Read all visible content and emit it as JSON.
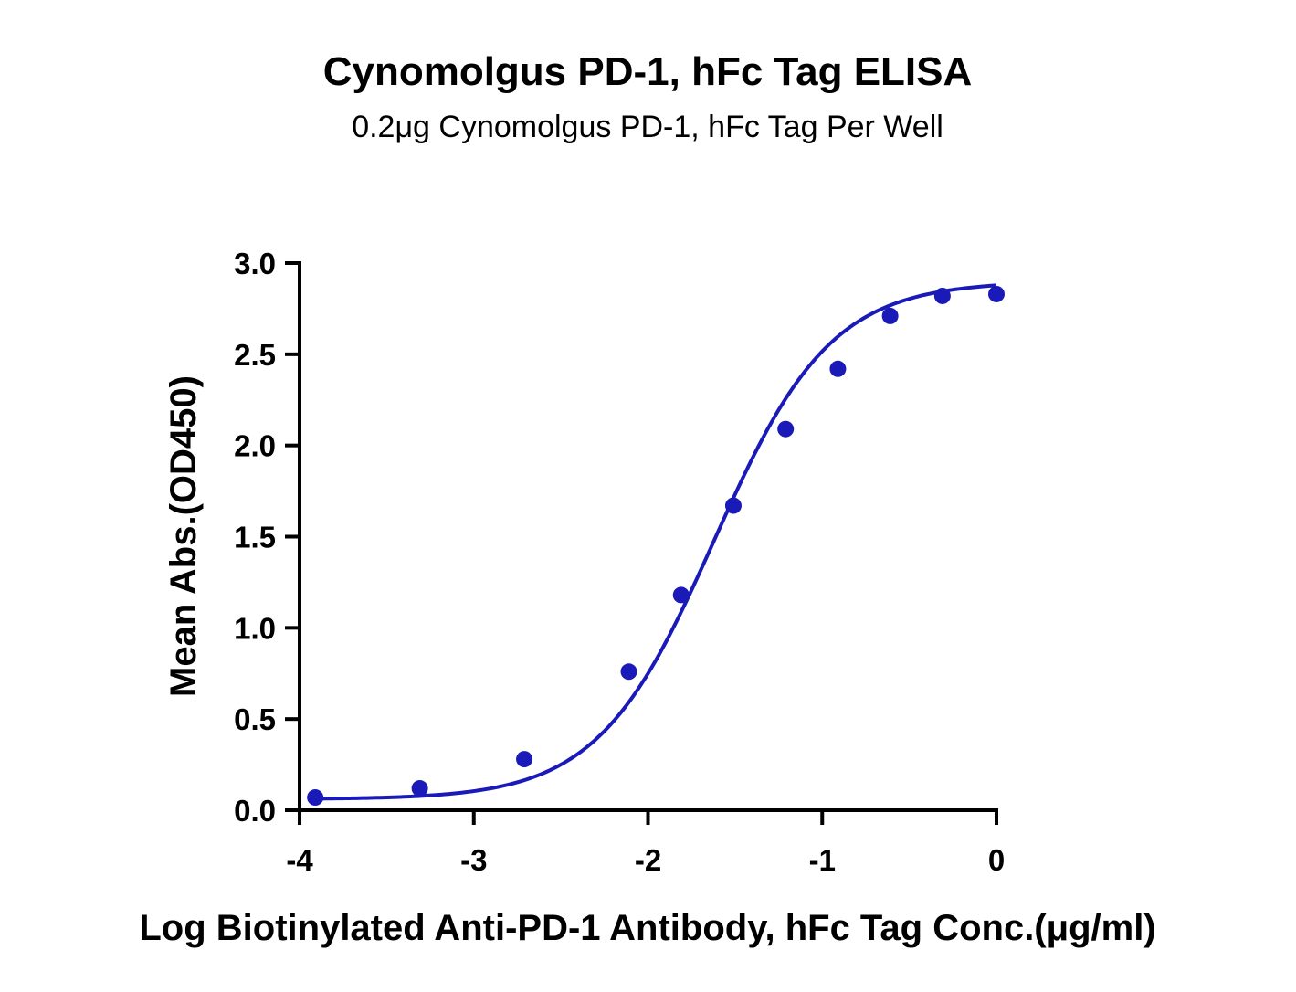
{
  "chart_data": {
    "type": "scatter",
    "title": "Cynomolgus PD-1, hFc Tag ELISA",
    "subtitle": "0.2μg Cynomolgus PD-1, hFc Tag Per Well",
    "xlabel": "Log Biotinylated Anti-PD-1 Antibody, hFc Tag Conc.(μg/ml)",
    "ylabel": "Mean Abs.(OD450)",
    "xlim": [
      -4,
      0
    ],
    "ylim": [
      0,
      3.0
    ],
    "x_ticks": [
      "-4",
      "-3",
      "-2",
      "-1",
      "0"
    ],
    "y_ticks": [
      "0.0",
      "0.5",
      "1.0",
      "1.5",
      "2.0",
      "2.5",
      "3.0"
    ],
    "grid": false,
    "color": "#1a1ab8",
    "fit": "4PL sigmoidal curve",
    "points": {
      "x": [
        -3.91,
        -3.31,
        -2.71,
        -2.11,
        -1.81,
        -1.51,
        -1.21,
        -0.91,
        -0.61,
        -0.31,
        0.0
      ],
      "y": [
        0.07,
        0.12,
        0.28,
        0.76,
        1.18,
        1.67,
        2.09,
        2.42,
        2.71,
        2.82,
        2.83
      ]
    },
    "curve_params": {
      "bottom": 0.06,
      "top": 2.9,
      "logEC50": -1.62,
      "hill": 1.3
    }
  }
}
